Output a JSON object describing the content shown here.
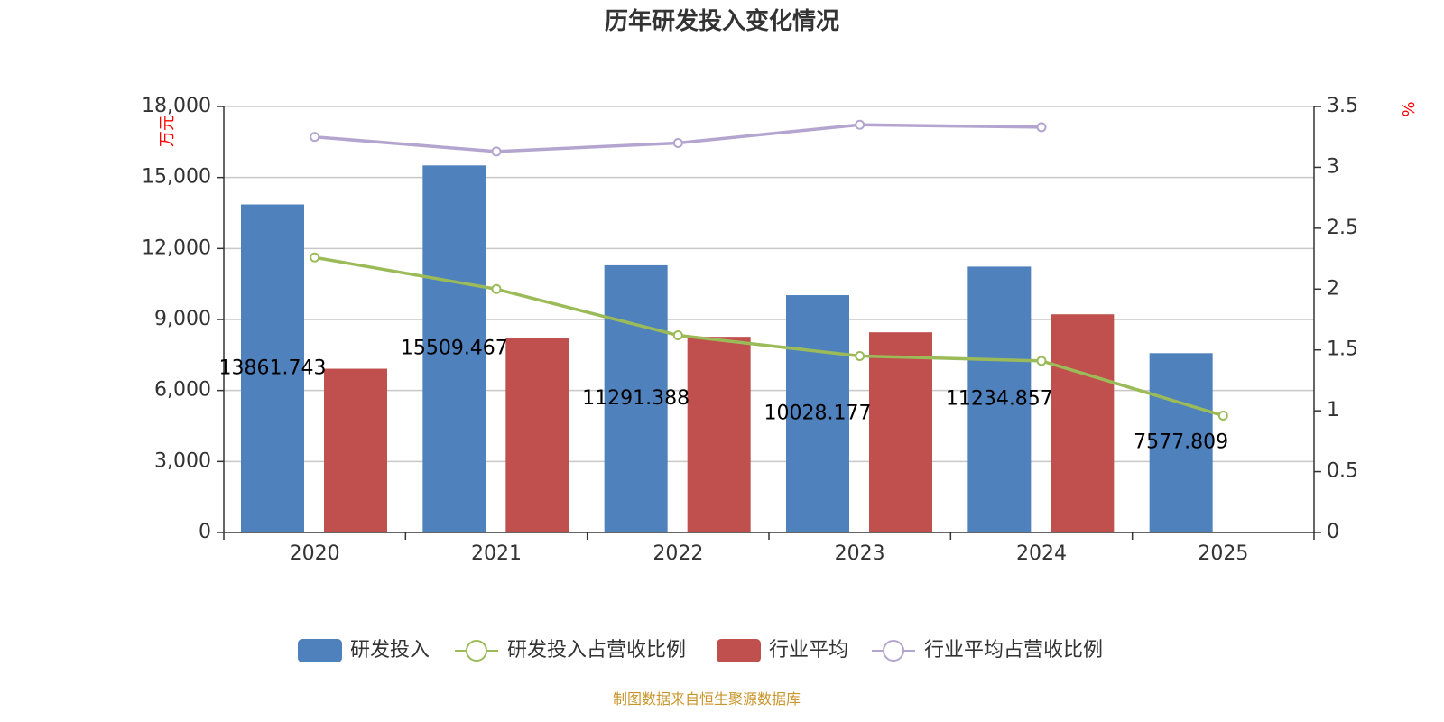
{
  "colors": {
    "rd": "#4f81bd",
    "industry": "#c0504d",
    "rd_ratio": "#9bbb59",
    "industry_ratio": "#b3a5d0",
    "grid": "#c8c8c8",
    "axis": "#333333",
    "unit": "#ff0000",
    "source": "#c8952a"
  },
  "source_text": "制图数据来自恒生聚源数据库",
  "chart_data": {
    "type": "bar",
    "title": "历年研发投入变化情况",
    "categories": [
      "2020",
      "2021",
      "2022",
      "2023",
      "2024",
      "2025"
    ],
    "y_left": {
      "unit": "万元",
      "range": [
        0,
        18000
      ],
      "ticks": [
        0,
        3000,
        6000,
        9000,
        12000,
        15000,
        18000
      ],
      "tick_labels": [
        "0",
        "3,000",
        "6,000",
        "9,000",
        "12,000",
        "15,000",
        "18,000"
      ]
    },
    "y_right": {
      "unit": "%",
      "range": [
        0,
        3.5
      ],
      "ticks": [
        0,
        0.5,
        1,
        1.5,
        2,
        2.5,
        3,
        3.5
      ],
      "tick_labels": [
        "0",
        "0.5",
        "1",
        "1.5",
        "2",
        "2.5",
        "3",
        "3.5"
      ]
    },
    "grid": true,
    "legend_position": "bottom",
    "series": [
      {
        "name": "研发投入",
        "kind": "bar",
        "axis": "left",
        "values": [
          13861.743,
          15509.467,
          11291.388,
          10028.177,
          11234.857,
          7577.809
        ],
        "labels": [
          "13861.743",
          "15509.467",
          "11291.388",
          "10028.177",
          "11234.857",
          "7577.809"
        ]
      },
      {
        "name": "研发投入占营收比例",
        "kind": "line",
        "axis": "right",
        "values": [
          2.26,
          2.0,
          1.62,
          1.45,
          1.41,
          0.96
        ]
      },
      {
        "name": "行业平均",
        "kind": "bar",
        "axis": "left",
        "values": [
          6920,
          8200,
          8270,
          8460,
          9220,
          null
        ]
      },
      {
        "name": "行业平均占营收比例",
        "kind": "line",
        "axis": "right",
        "values": [
          3.25,
          3.13,
          3.2,
          3.35,
          3.33,
          null
        ]
      }
    ]
  }
}
